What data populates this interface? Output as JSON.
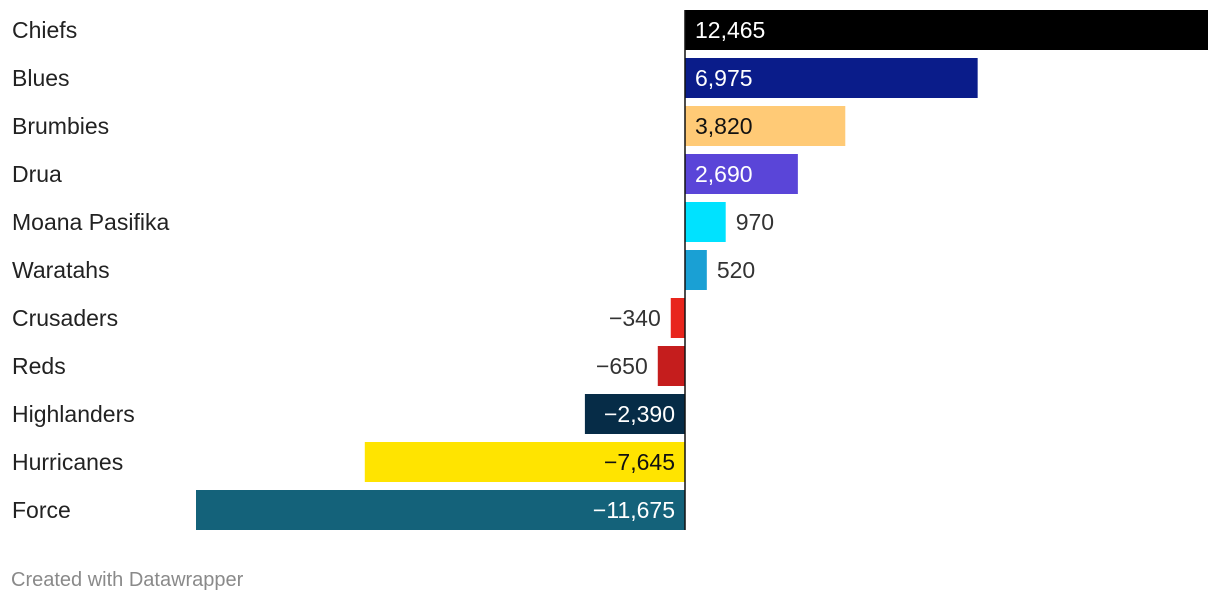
{
  "chart_data": {
    "type": "bar",
    "orientation": "horizontal",
    "categories": [
      "Chiefs",
      "Blues",
      "Brumbies",
      "Drua",
      "Moana Pasifika",
      "Waratahs",
      "Crusaders",
      "Reds",
      "Highlanders",
      "Hurricanes",
      "Force"
    ],
    "values": [
      12465,
      6975,
      3820,
      2690,
      970,
      520,
      -340,
      -650,
      -2390,
      -7645,
      -11675
    ],
    "value_labels": [
      "12,465",
      "6,975",
      "3,820",
      "2,690",
      "970",
      "520",
      "−340",
      "−650",
      "−2,390",
      "−7,645",
      "−11,675"
    ],
    "colors": [
      "#000000",
      "#0a1c8a",
      "#ffca76",
      "#5a45d8",
      "#00e2ff",
      "#1aa0d4",
      "#e8251c",
      "#c51d1d",
      "#062c47",
      "#ffe400",
      "#14627a"
    ],
    "label_colors": [
      "#ffffff",
      "#ffffff",
      "#111111",
      "#ffffff",
      "#333333",
      "#333333",
      "#333333",
      "#333333",
      "#ffffff",
      "#111111",
      "#ffffff"
    ],
    "xlim": [
      -11675,
      12465
    ],
    "title": "",
    "xlabel": "",
    "ylabel": ""
  },
  "footer": {
    "credit": "Created with Datawrapper"
  }
}
